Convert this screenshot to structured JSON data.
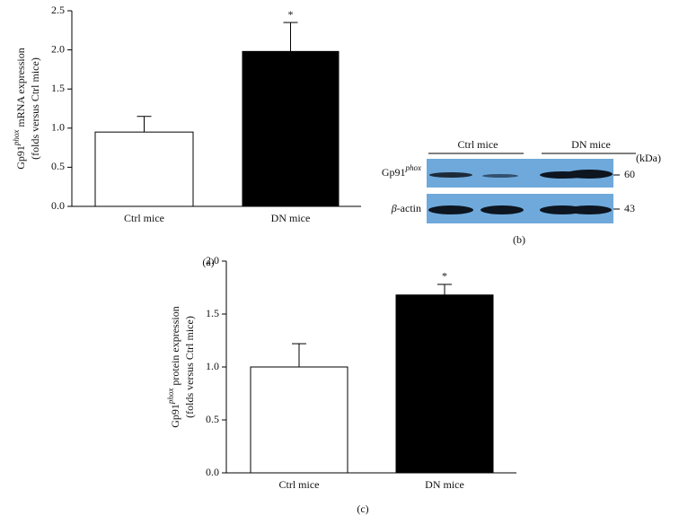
{
  "chart_data": [
    {
      "type": "bar",
      "panel": "(a)",
      "ylabel": {
        "prefix": "Gp91",
        "sup": "phox",
        "suffix": " mRNA expression",
        "line2": "(folds versus Ctrl mice)"
      },
      "categories": [
        "Ctrl mice",
        "DN mice"
      ],
      "values": [
        0.95,
        1.98
      ],
      "errors": [
        0.2,
        0.37
      ],
      "colors": [
        "#ffffff",
        "#000000"
      ],
      "annotation": "*",
      "ylim": [
        0,
        2.5
      ],
      "yticks": [
        {
          "value": 0,
          "label": "0.0"
        },
        0.5,
        {
          "value": 1,
          "label": "1.0"
        },
        1.5,
        {
          "value": 2,
          "label": "2.0"
        },
        2.5
      ]
    },
    {
      "type": "bar",
      "panel": "(c)",
      "ylabel": {
        "prefix": "Gp91",
        "sup": "phox",
        "suffix": " protein expression",
        "line2": "(folds versus Ctrl mice)"
      },
      "categories": [
        "Ctrl mice",
        "DN mice"
      ],
      "values": [
        1.0,
        1.68
      ],
      "errors": [
        0.22,
        0.1
      ],
      "colors": [
        "#ffffff",
        "#000000"
      ],
      "annotation": "*",
      "ylim": [
        0,
        2
      ],
      "yticks": [
        {
          "value": 0,
          "label": "0.0"
        },
        0.5,
        {
          "value": 1,
          "label": "1.0"
        },
        1.5,
        {
          "value": 2,
          "label": "2.0"
        }
      ]
    }
  ],
  "blot": {
    "groups": [
      "Ctrl mice",
      "DN mice"
    ],
    "unit": "(kDa)",
    "rows": [
      {
        "prefix": "Gp91",
        "sup": "phox",
        "kda": "60"
      },
      {
        "greek": "β",
        "suffix": "-actin",
        "kda": "43"
      }
    ],
    "panel": "(b)"
  }
}
